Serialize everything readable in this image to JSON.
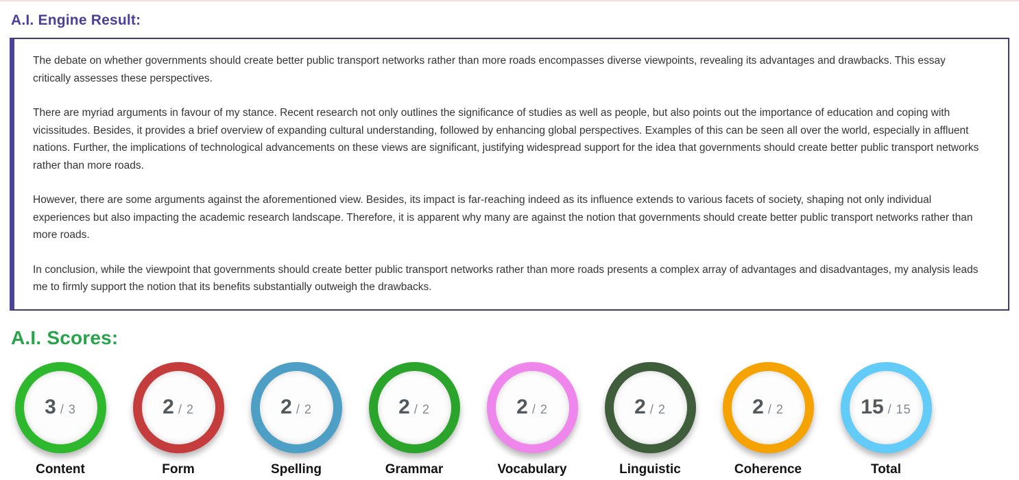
{
  "headers": {
    "engine_result": "A.I. Engine Result:",
    "scores": "A.I. Scores:"
  },
  "colors": {
    "engine_result_title": "#4a3f99",
    "scores_title": "#27a449",
    "essay_box_border": "#3e3a63",
    "essay_box_left_bar": "#4c4499",
    "top_divider": "#f2dfdf"
  },
  "essay": {
    "paragraphs": [
      "The debate on whether governments should create better public transport networks rather than more roads encompasses diverse viewpoints, revealing its advantages and drawbacks. This essay critically assesses these perspectives.",
      "There are myriad arguments in favour of my stance. Recent research not only outlines the significance of studies as well as people, but also points out the importance of education and coping with vicissitudes. Besides, it provides a brief overview of expanding cultural understanding, followed by enhancing global perspectives. Examples of this can be seen all over the world, especially in affluent nations. Further, the implications of technological advancements on these views are significant, justifying widespread support for the idea that governments should create better public transport networks rather than more roads.",
      "However, there are some arguments against the aforementioned view. Besides, its impact is far-reaching indeed as its influence extends to various facets of society, shaping not only individual experiences but also impacting the academic research landscape. Therefore, it is apparent why many are against the notion that governments should create better public transport networks rather than more roads.",
      "In conclusion, while the viewpoint that governments should create better public transport networks rather than more roads presents a complex array of advantages and disadvantages, my analysis leads me to firmly support the notion that its benefits substantially outweigh the drawbacks."
    ]
  },
  "scores": [
    {
      "label": "Content",
      "value": "3",
      "max": "3",
      "ring_color": "#2eb82e"
    },
    {
      "label": "Form",
      "value": "2",
      "max": "2",
      "ring_color": "#c43c3c"
    },
    {
      "label": "Spelling",
      "value": "2",
      "max": "2",
      "ring_color": "#4d9fc6"
    },
    {
      "label": "Grammar",
      "value": "2",
      "max": "2",
      "ring_color": "#2aa42a"
    },
    {
      "label": "Vocabulary",
      "value": "2",
      "max": "2",
      "ring_color": "#ee86ec"
    },
    {
      "label": "Linguistic",
      "value": "2",
      "max": "2",
      "ring_color": "#3f5d3b"
    },
    {
      "label": "Coherence",
      "value": "2",
      "max": "2",
      "ring_color": "#f5a303"
    },
    {
      "label": "Total",
      "value": "15",
      "max": "15",
      "ring_color": "#63cbf7"
    }
  ]
}
